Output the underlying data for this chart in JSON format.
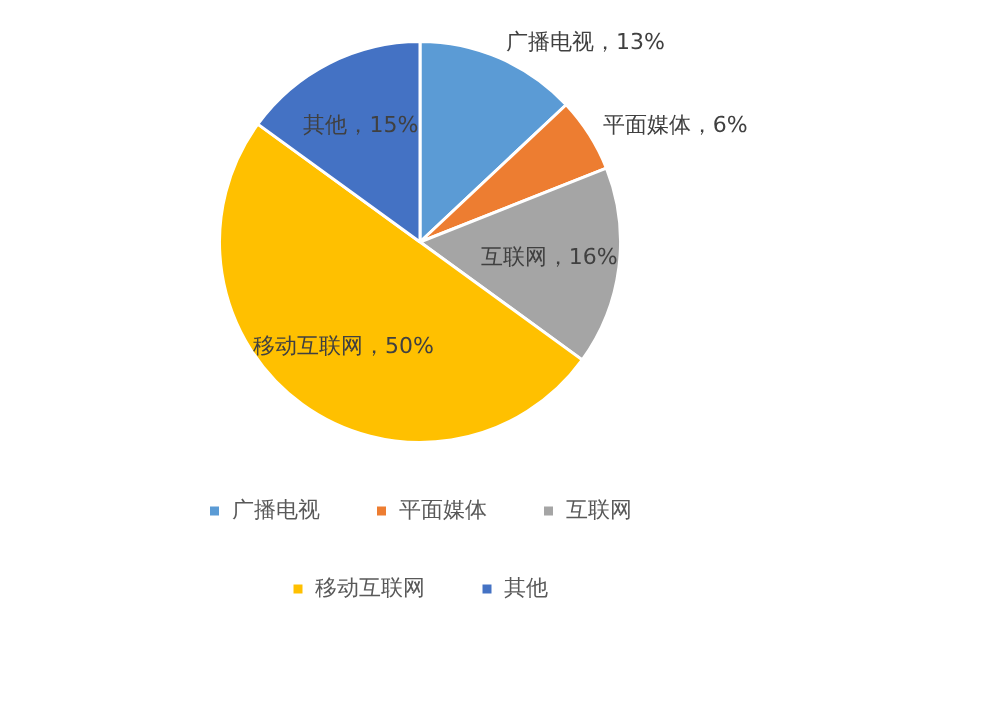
{
  "chart_data": {
    "type": "pie",
    "categories": [
      "广播电视",
      "平面媒体",
      "互联网",
      "移动互联网",
      "其他"
    ],
    "values": [
      13,
      6,
      16,
      50,
      15
    ],
    "colors": [
      "#5b9bd5",
      "#ed7d31",
      "#a5a5a5",
      "#ffc000",
      "#4472c4"
    ],
    "value_labels": [
      "广播电视，13%",
      "平面媒体，6%",
      "互联网，16%",
      "移动互联网，50%",
      "其他，15%"
    ],
    "legend": "bottom"
  }
}
